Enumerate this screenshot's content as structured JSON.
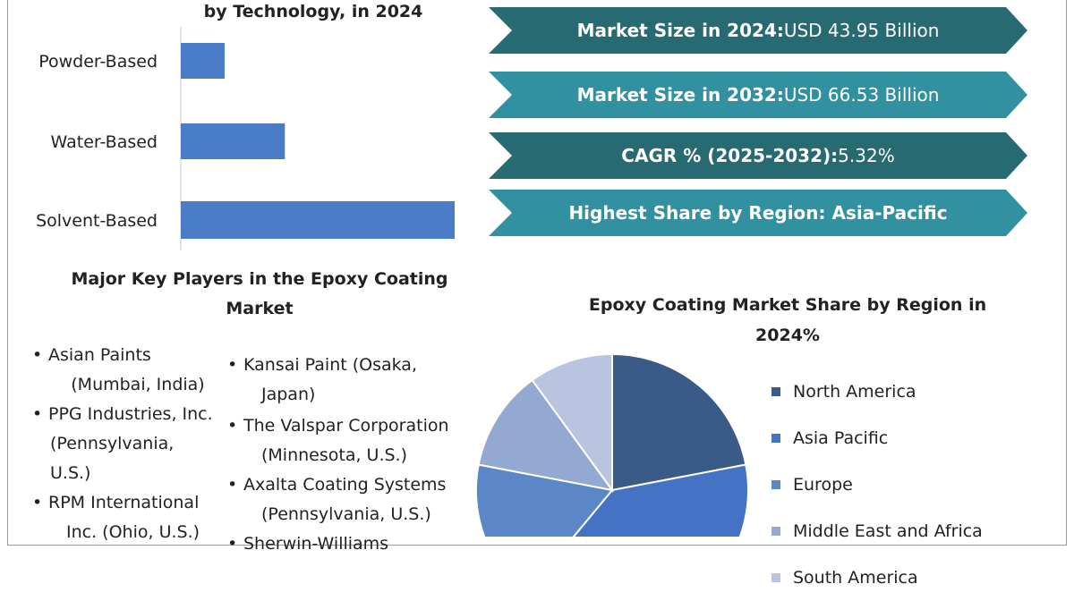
{
  "bar_chart": {
    "title": "by Technology, in 2024"
  },
  "banners": [
    {
      "bold": "Market Size in 2024:",
      "value": " USD 43.95 Billion",
      "color": "#276a71"
    },
    {
      "bold": "Market Size in 2032:",
      "value": " USD 66.53 Billion",
      "color": "#3191a0"
    },
    {
      "bold": "CAGR % (2025-2032):",
      "value": " 5.32%",
      "color": "#276a71"
    },
    {
      "bold": "Highest Share by Region: Asia-Pacific",
      "value": "",
      "color": "#3191a0"
    }
  ],
  "players": {
    "title_line1": "Major Key Players in the Epoxy Coating",
    "title_line2": "Market",
    "left": [
      {
        "name": "Asian Paints",
        "detail": "(Mumbai, India)"
      },
      {
        "name": "PPG Industries, Inc.",
        "detail": "(Pennsylvania,",
        "detail2": "U.S.)"
      },
      {
        "name": "RPM International",
        "detail": "Inc. (Ohio, U.S.)"
      }
    ],
    "right": [
      {
        "name": "Kansai Paint (Osaka,",
        "detail": "Japan)"
      },
      {
        "name": "The Valspar Corporation",
        "detail": "(Minnesota, U.S.)"
      },
      {
        "name": "Axalta Coating Systems",
        "detail": "(Pennsylvania, U.S.)"
      },
      {
        "name": "Sherwin-Williams",
        "detail": ""
      }
    ]
  },
  "pie": {
    "title_line1": "Epoxy Coating Market Share by Region in",
    "title_line2": "2024%"
  },
  "chart_data": [
    {
      "type": "bar",
      "orientation": "horizontal",
      "title": "by Technology, in 2024",
      "categories": [
        "Powder-Based",
        "Water-Based",
        "Solvent-Based"
      ],
      "values": [
        8,
        19,
        50
      ],
      "xlim": [
        0,
        50
      ],
      "grid": false,
      "color": "#4a7cc7"
    },
    {
      "type": "pie",
      "title": "Epoxy Coating Market Share by Region in 2024%",
      "labels": [
        "North America",
        "Asia Pacific",
        "Europe",
        "Middle East and Africa",
        "South America"
      ],
      "values": [
        22,
        39,
        17,
        12,
        10
      ],
      "colors": [
        "#3a5a87",
        "#4472c4",
        "#5b86c8",
        "#93a9d2",
        "#b8c4e0"
      ],
      "legend": "right"
    }
  ]
}
